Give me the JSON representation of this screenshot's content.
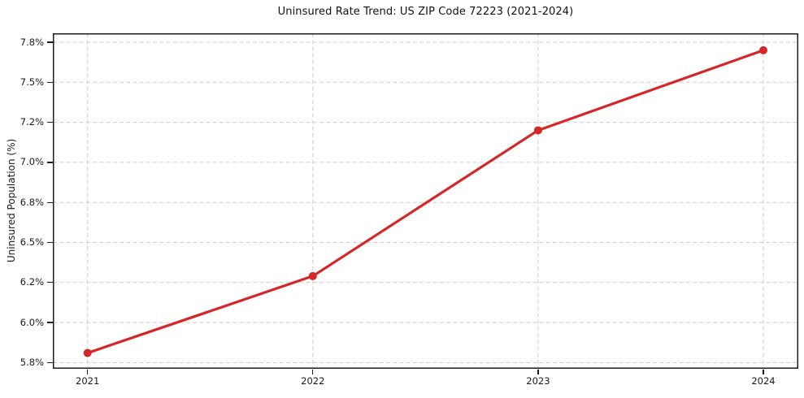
{
  "chart_data": {
    "type": "line",
    "title": "Uninsured Rate Trend: US ZIP Code 72223 (2021-2024)",
    "xlabel": "",
    "ylabel": "Uninsured Population (%)",
    "categories": [
      "2021",
      "2022",
      "2023",
      "2024"
    ],
    "values": [
      5.86,
      6.34,
      7.25,
      7.75
    ],
    "y_axis": {
      "scale_min": 5.8,
      "scale_max": 7.8,
      "tick_labels": [
        "5.8%",
        "6.0%",
        "6.2%",
        "6.5%",
        "6.8%",
        "7.0%",
        "7.2%",
        "7.5%",
        "7.8%"
      ]
    },
    "grid": true,
    "grid_style": "dashed",
    "legend": "none",
    "colors": {
      "line": "#d62728",
      "marker": "#d62728",
      "grid": "#cdcdcd",
      "spine": "#1c1c1c",
      "text": "#1a1a1a",
      "background": "#ffffff"
    }
  }
}
